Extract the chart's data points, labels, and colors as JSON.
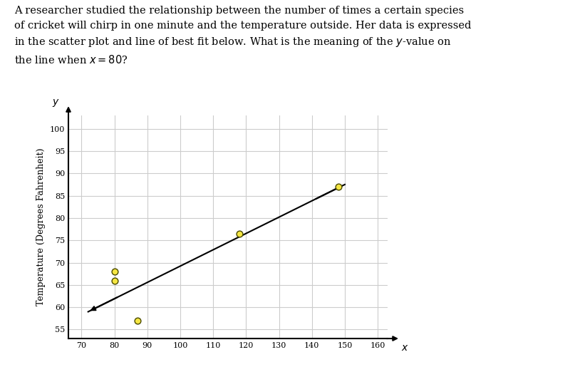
{
  "scatter_x": [
    80,
    80,
    87,
    118,
    148
  ],
  "scatter_y": [
    68,
    66,
    57,
    76.5,
    87
  ],
  "scatter_color": "#f5e642",
  "scatter_edgecolor": "#4a4a00",
  "scatter_size": 40,
  "line_x1": 72,
  "line_y1": 59,
  "line_x2": 150,
  "line_y2": 87.5,
  "line_color": "#000000",
  "line_width": 1.5,
  "ylabel": "Temperature (Degrees Fahrenheit)",
  "xlim": [
    66,
    163
  ],
  "ylim": [
    53,
    103
  ],
  "xticks": [
    70,
    80,
    90,
    100,
    110,
    120,
    130,
    140,
    150,
    160
  ],
  "yticks": [
    55,
    60,
    65,
    70,
    75,
    80,
    85,
    90,
    95,
    100
  ],
  "grid_color": "#cccccc",
  "background_color": "#ffffff",
  "fig_bg": "#f0f0f0"
}
